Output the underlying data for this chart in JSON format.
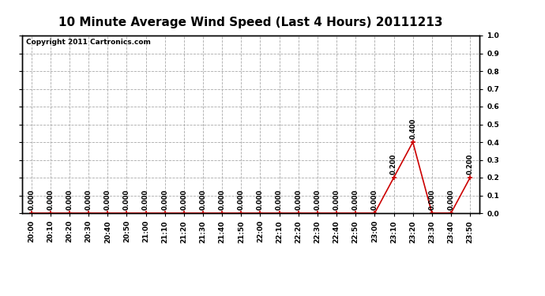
{
  "title": "10 Minute Average Wind Speed (Last 4 Hours) 20111213",
  "copyright": "Copyright 2011 Cartronics.com",
  "x_labels": [
    "20:00",
    "20:10",
    "20:20",
    "20:30",
    "20:40",
    "20:50",
    "21:00",
    "21:10",
    "21:20",
    "21:30",
    "21:40",
    "21:50",
    "22:00",
    "22:10",
    "22:20",
    "22:30",
    "22:40",
    "22:50",
    "23:00",
    "23:10",
    "23:20",
    "23:30",
    "23:40",
    "23:50"
  ],
  "y_values": [
    0.0,
    0.0,
    0.0,
    0.0,
    0.0,
    0.0,
    0.0,
    0.0,
    0.0,
    0.0,
    0.0,
    0.0,
    0.0,
    0.0,
    0.0,
    0.0,
    0.0,
    0.0,
    0.0,
    0.2,
    0.4,
    0.0,
    0.0,
    0.2
  ],
  "line_color": "#cc0000",
  "marker_color": "#cc0000",
  "marker": "+",
  "ylim": [
    0.0,
    1.0
  ],
  "yticks": [
    0.0,
    0.1,
    0.2,
    0.3,
    0.4,
    0.5,
    0.6,
    0.7,
    0.8,
    0.9,
    1.0
  ],
  "grid_color": "#aaaaaa",
  "grid_style": "--",
  "bg_color": "#ffffff",
  "title_fontsize": 11,
  "copyright_fontsize": 6.5,
  "annotation_fontsize": 6,
  "tick_fontsize": 6.5
}
